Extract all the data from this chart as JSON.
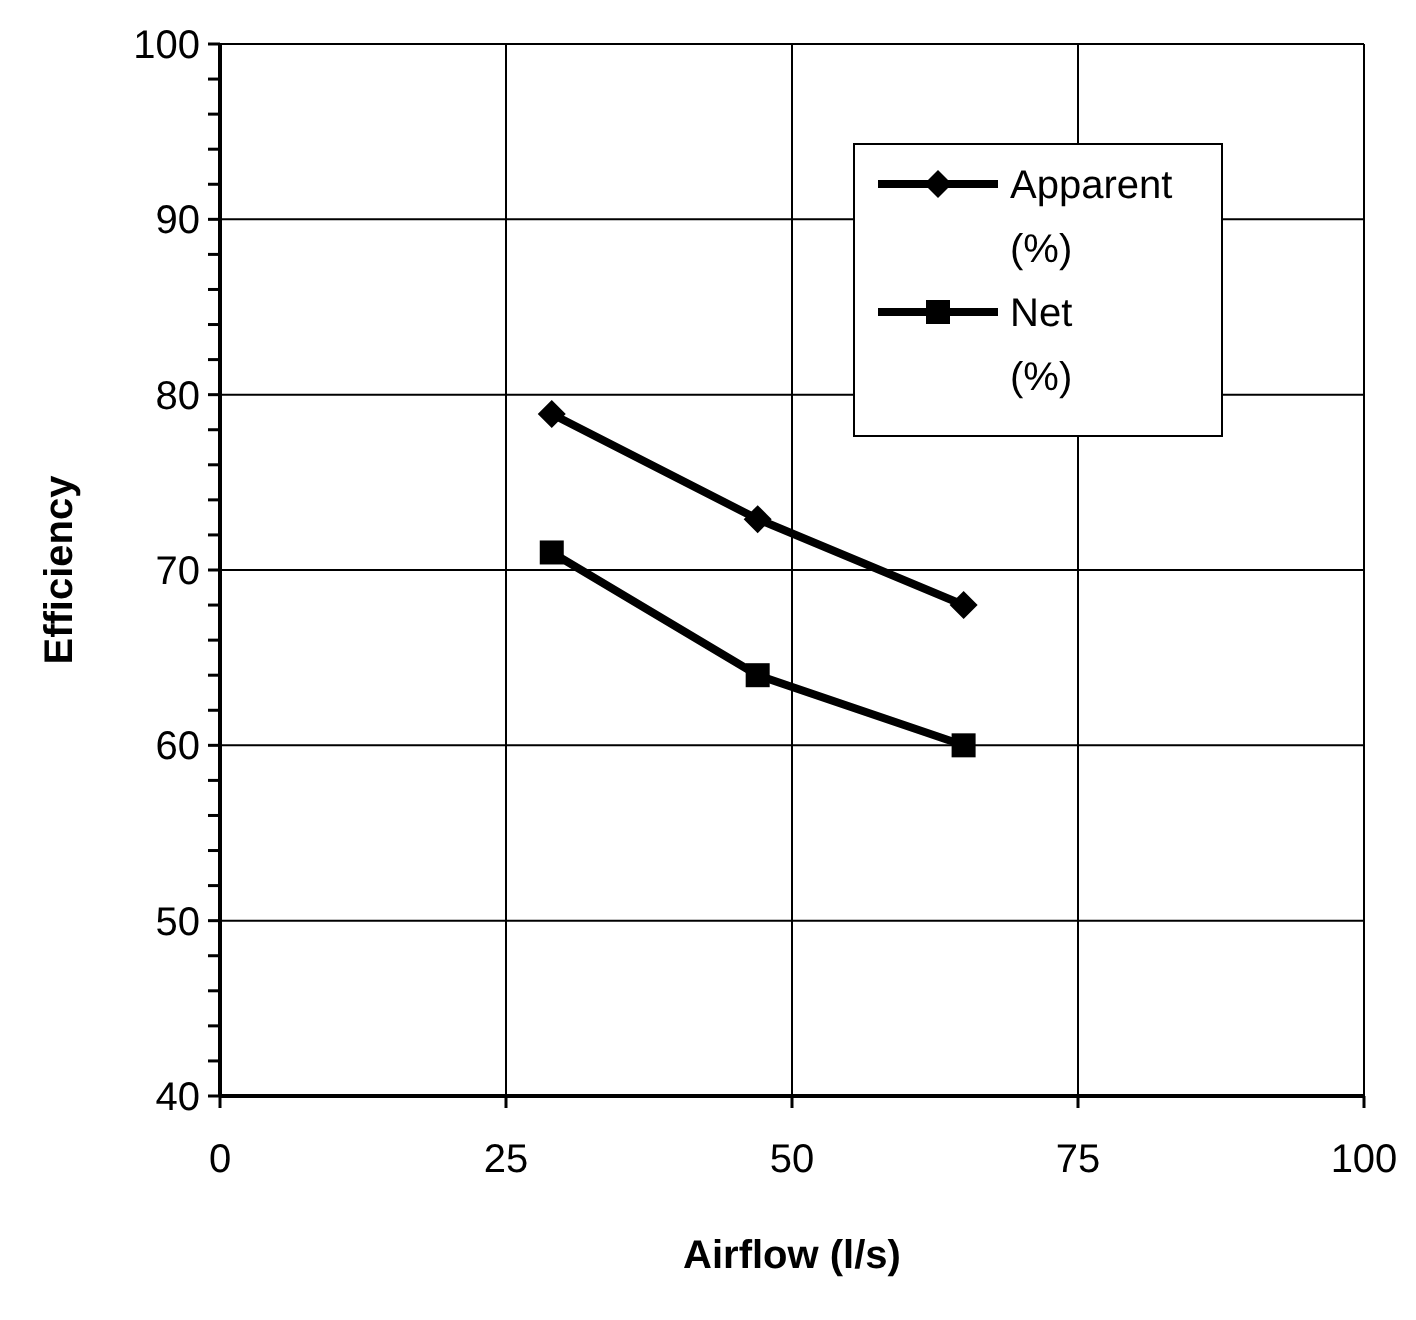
{
  "chart_data": {
    "type": "line",
    "xlabel": "Airflow (l/s)",
    "ylabel": "Efficiency",
    "xlim": [
      0,
      100
    ],
    "xticks": [
      0,
      25,
      50,
      75,
      100
    ],
    "ylim": [
      40,
      100
    ],
    "yticks": [
      40,
      {
        "value": 42,
        "label": null
      },
      {
        "value": 44,
        "label": null
      },
      {
        "value": 46,
        "label": null
      },
      {
        "value": 48,
        "label": null
      },
      50,
      {
        "value": 52,
        "label": null
      },
      {
        "value": 54,
        "label": null
      },
      {
        "value": 56,
        "label": null
      },
      {
        "value": 58,
        "label": null
      },
      60,
      {
        "value": 62,
        "label": null
      },
      {
        "value": 64,
        "label": null
      },
      {
        "value": 66,
        "label": null
      },
      {
        "value": 68,
        "label": null
      },
      70,
      {
        "value": 72,
        "label": null
      },
      {
        "value": 74,
        "label": null
      },
      {
        "value": 76,
        "label": null
      },
      {
        "value": 78,
        "label": null
      },
      80,
      {
        "value": 82,
        "label": null
      },
      {
        "value": 84,
        "label": null
      },
      {
        "value": 86,
        "label": null
      },
      {
        "value": 88,
        "label": null
      },
      90,
      {
        "value": 92,
        "label": null
      },
      {
        "value": 94,
        "label": null
      },
      {
        "value": 96,
        "label": null
      },
      {
        "value": 98,
        "label": null
      },
      100
    ],
    "x": [
      29,
      47,
      65
    ],
    "grid": true,
    "legend": "top right",
    "line_style": "solid",
    "series": [
      {
        "name": "Apparent (%)",
        "color": "#000000",
        "marker": "diamond",
        "values": [
          78.9,
          72.9,
          68.0
        ]
      },
      {
        "name": "Net (%)",
        "color": "#000000",
        "marker": "square",
        "values": [
          71.0,
          64.0,
          60.0
        ]
      }
    ]
  }
}
